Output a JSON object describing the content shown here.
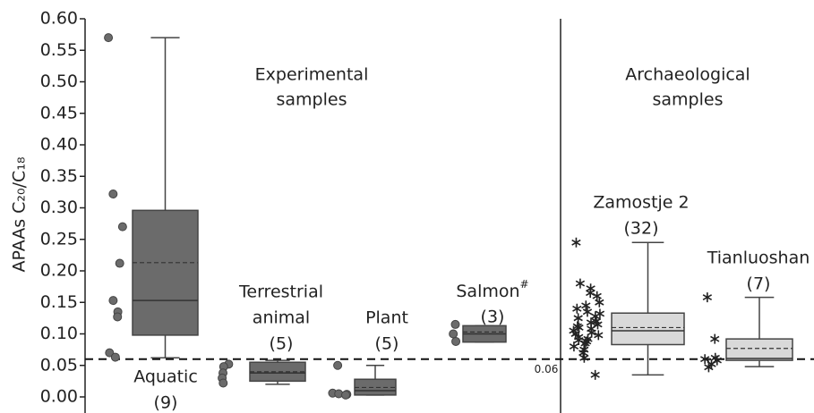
{
  "chart_data": {
    "type": "box",
    "y_label": "APAAs C₂₀/C₁₈",
    "ylim": [
      0,
      0.6
    ],
    "yticks": [
      {
        "value": 0,
        "label": "0.00"
      },
      {
        "value": 0.05,
        "label": "0.05"
      },
      {
        "value": 0.1,
        "label": "0.10"
      },
      {
        "value": 0.15,
        "label": "0.15"
      },
      {
        "value": 0.2,
        "label": "0.20"
      },
      {
        "value": 0.25,
        "label": "0.25"
      },
      {
        "value": 0.3,
        "label": "0.30"
      },
      {
        "value": 0.35,
        "label": "0.35"
      },
      {
        "value": 0.4,
        "label": "0.40"
      },
      {
        "value": 0.45,
        "label": "0.45"
      },
      {
        "value": 0.5,
        "label": "0.50"
      },
      {
        "value": 0.55,
        "label": "0.55"
      },
      {
        "value": 0.6,
        "label": "0.60"
      }
    ],
    "reference_line": {
      "value": 0.06,
      "label": "0.06"
    },
    "section_labels": [
      [
        "Experimental",
        "samples"
      ],
      [
        "Archaeological",
        "samples"
      ]
    ],
    "groups": [
      {
        "label": [
          "Aquatic"
        ],
        "count_label": "(9)",
        "color": "#6b6b6b",
        "marker": "circle",
        "whislo": 0.062,
        "q1": 0.098,
        "med": 0.153,
        "mean": 0.213,
        "q3": 0.296,
        "whishi": 0.57,
        "points": [
          0.57,
          0.322,
          0.27,
          0.212,
          0.153,
          0.135,
          0.127,
          0.07,
          0.063
        ]
      },
      {
        "label": [
          "Terrestrial",
          "animal"
        ],
        "count_label": "(5)",
        "color": "#6b6b6b",
        "marker": "circle",
        "whislo": 0.02,
        "q1": 0.025,
        "med": 0.038,
        "mean": 0.04,
        "q3": 0.055,
        "whishi": 0.058,
        "points": [
          0.052,
          0.048,
          0.038,
          0.03,
          0.022
        ]
      },
      {
        "label": [
          "Plant"
        ],
        "count_label": "(5)",
        "color": "#6b6b6b",
        "marker": "circle",
        "whislo": 0.003,
        "q1": 0.003,
        "med": 0.01,
        "mean": 0.015,
        "q3": 0.028,
        "whishi": 0.05,
        "points": [
          0.05,
          0.006,
          0.005,
          0.004,
          0.003
        ]
      },
      {
        "label": [
          "Salmon"
        ],
        "label_sup": "#",
        "count_label": "(3)",
        "color": "#6b6b6b",
        "marker": "circle",
        "whislo": 0.087,
        "q1": 0.087,
        "med": 0.1,
        "mean": 0.103,
        "q3": 0.113,
        "whishi": 0.113,
        "points": [
          0.115,
          0.1,
          0.088
        ]
      },
      {
        "label": [
          "Zamostje 2"
        ],
        "count_label": "(32)",
        "color": "#d9d9d9",
        "marker": "asterisk",
        "whislo": 0.035,
        "q1": 0.083,
        "med": 0.105,
        "mean": 0.11,
        "q3": 0.133,
        "whishi": 0.245,
        "points": [
          0.245,
          0.18,
          0.172,
          0.165,
          0.16,
          0.15,
          0.145,
          0.14,
          0.135,
          0.132,
          0.128,
          0.125,
          0.12,
          0.118,
          0.115,
          0.112,
          0.11,
          0.108,
          0.105,
          0.102,
          0.1,
          0.098,
          0.095,
          0.092,
          0.09,
          0.088,
          0.085,
          0.08,
          0.075,
          0.07,
          0.062,
          0.035
        ]
      },
      {
        "label": [
          "Tianluoshan"
        ],
        "count_label": "(7)",
        "color": "#d9d9d9",
        "marker": "asterisk",
        "whislo": 0.048,
        "q1": 0.058,
        "med": 0.061,
        "mean": 0.077,
        "q3": 0.092,
        "whishi": 0.158,
        "points": [
          0.158,
          0.092,
          0.062,
          0.06,
          0.058,
          0.052,
          0.047
        ]
      }
    ]
  }
}
